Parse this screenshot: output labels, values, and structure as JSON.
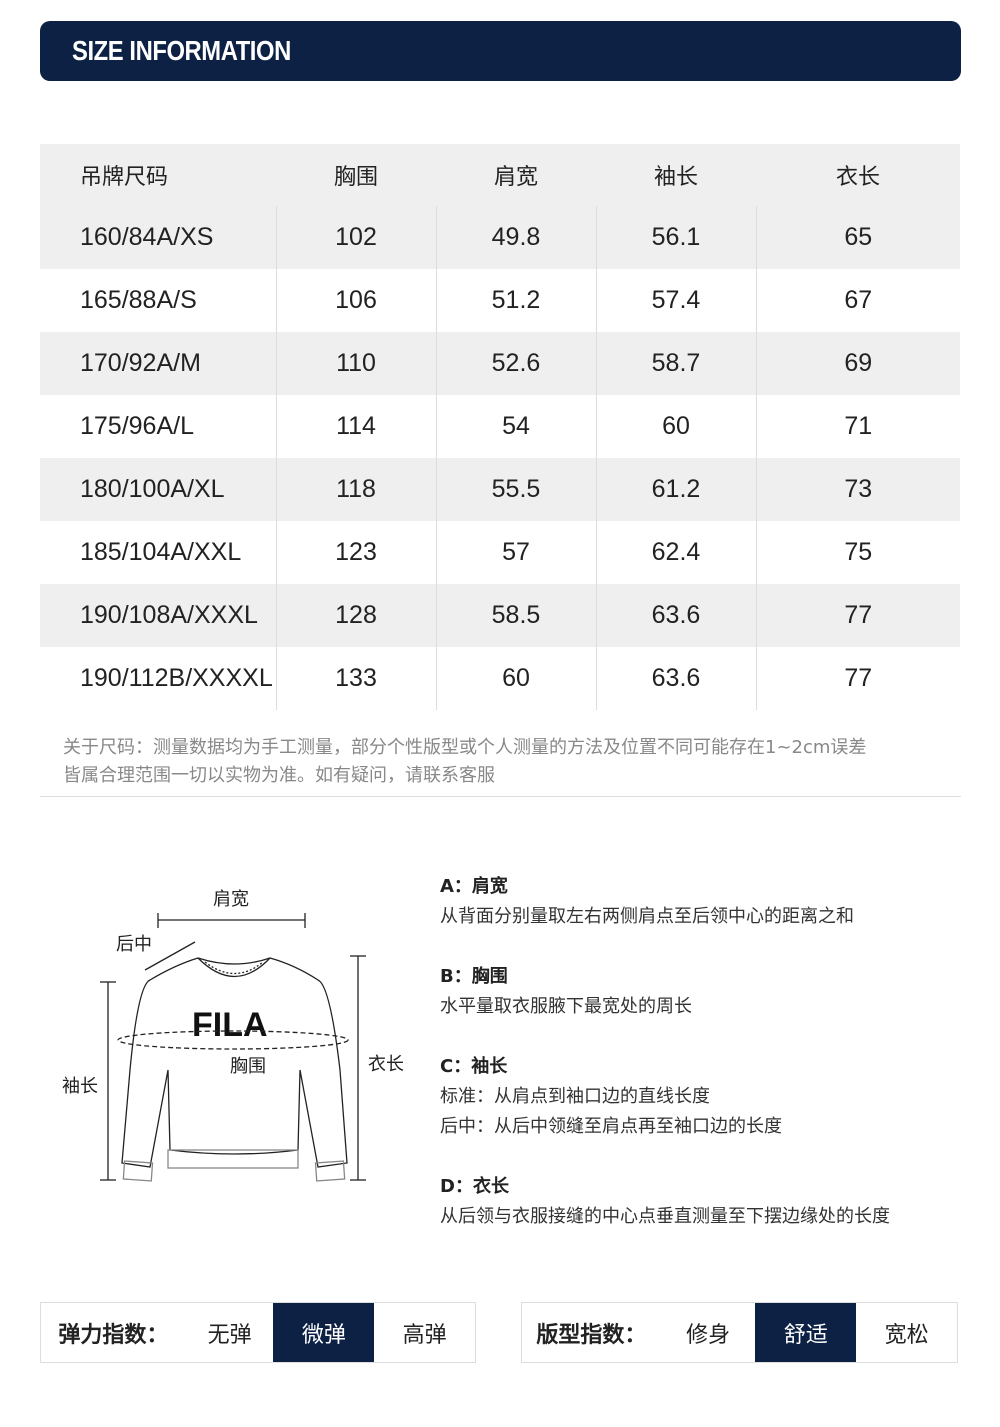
{
  "header": {
    "title": "SIZE INFORMATION"
  },
  "table": {
    "columns": [
      "吊牌尺码",
      "胸围",
      "肩宽",
      "袖长",
      "衣长"
    ],
    "rows": [
      [
        "160/84A/XS",
        "102",
        "49.8",
        "56.1",
        "65"
      ],
      [
        "165/88A/S",
        "106",
        "51.2",
        "57.4",
        "67"
      ],
      [
        "170/92A/M",
        "110",
        "52.6",
        "58.7",
        "69"
      ],
      [
        "175/96A/L",
        "114",
        "54",
        "60",
        "71"
      ],
      [
        "180/100A/XL",
        "118",
        "55.5",
        "61.2",
        "73"
      ],
      [
        "185/104A/XXL",
        "123",
        "57",
        "62.4",
        "75"
      ],
      [
        "190/108A/XXXL",
        "128",
        "58.5",
        "63.6",
        "77"
      ],
      [
        "190/112B/XXXXL",
        "133",
        "60",
        "63.6",
        "77"
      ]
    ]
  },
  "note": [
    "关于尺码：测量数据均为手工测量，部分个性版型或个人测量的方法及位置不同可能存在1~2cm误差",
    "皆属合理范围一切以实物为准。如有疑问，请联系客服"
  ],
  "diagram": {
    "shoulder": "肩宽",
    "back_center": "后中",
    "chest": "胸围",
    "sleeve": "袖长",
    "length": "衣长",
    "logo": "FILA"
  },
  "definitions": [
    {
      "title": "A：肩宽",
      "lines": [
        "从背面分别量取左右两侧肩点至后领中心的距离之和"
      ]
    },
    {
      "title": "B：胸围",
      "lines": [
        "水平量取衣服腋下最宽处的周长"
      ]
    },
    {
      "title": "C：袖长",
      "lines": [
        "标准：从肩点到袖口边的直线长度",
        "后中：从后中领缝至肩点再至袖口边的长度"
      ]
    },
    {
      "title": "D：衣长",
      "lines": [
        "从后领与衣服接缝的中心点垂直测量至下摆边缘处的长度"
      ]
    }
  ],
  "elasticity": {
    "label": "弹力指数：",
    "options": [
      "无弹",
      "微弹",
      "高弹"
    ],
    "selected": "微弹"
  },
  "fit": {
    "label": "版型指数：",
    "options": [
      "修身",
      "舒适",
      "宽松"
    ],
    "selected": "舒适"
  },
  "colors": {
    "accent": "#0d2145",
    "row_alt": "#efefef"
  }
}
